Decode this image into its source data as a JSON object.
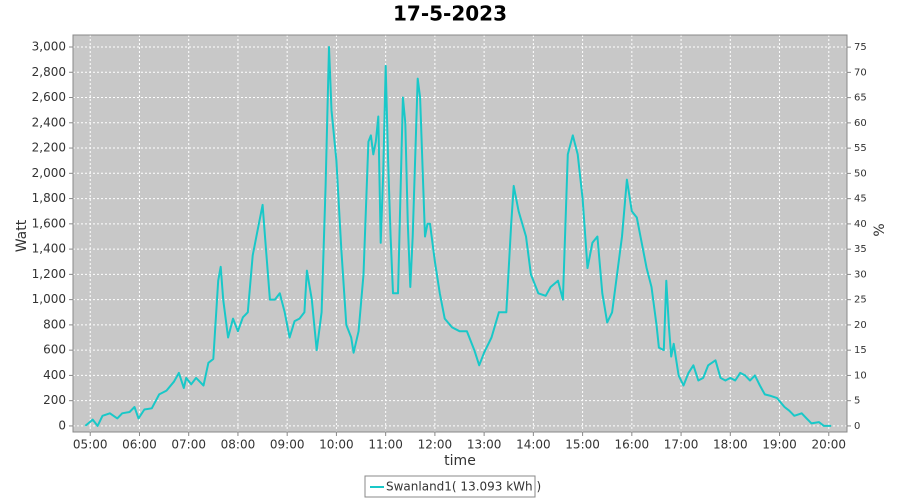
{
  "chart_data": {
    "type": "line",
    "title": "17-5-2023",
    "x_label": "time",
    "y_label": "Watt",
    "y2_label": "%",
    "x": [
      4.9,
      5.05,
      5.15,
      5.25,
      5.4,
      5.55,
      5.65,
      5.8,
      5.9,
      5.98,
      6.1,
      6.25,
      6.4,
      6.55,
      6.7,
      6.8,
      6.9,
      6.95,
      7.05,
      7.15,
      7.3,
      7.4,
      7.5,
      7.6,
      7.65,
      7.7,
      7.8,
      7.9,
      8.0,
      8.1,
      8.2,
      8.3,
      8.4,
      8.5,
      8.55,
      8.65,
      8.75,
      8.85,
      8.95,
      9.05,
      9.15,
      9.25,
      9.35,
      9.4,
      9.5,
      9.6,
      9.7,
      9.78,
      9.85,
      9.9,
      10.0,
      10.1,
      10.2,
      10.3,
      10.35,
      10.45,
      10.55,
      10.65,
      10.7,
      10.75,
      10.8,
      10.85,
      10.9,
      10.95,
      11.0,
      11.05,
      11.1,
      11.15,
      11.25,
      11.35,
      11.4,
      11.45,
      11.5,
      11.55,
      11.65,
      11.7,
      11.8,
      11.85,
      11.9,
      12.0,
      12.1,
      12.2,
      12.35,
      12.5,
      12.65,
      12.8,
      12.9,
      13.0,
      13.15,
      13.3,
      13.45,
      13.55,
      13.6,
      13.7,
      13.85,
      13.95,
      14.1,
      14.25,
      14.35,
      14.5,
      14.6,
      14.7,
      14.8,
      14.9,
      15.0,
      15.1,
      15.2,
      15.3,
      15.4,
      15.5,
      15.6,
      15.8,
      15.9,
      16.0,
      16.1,
      16.2,
      16.3,
      16.4,
      16.5,
      16.55,
      16.65,
      16.7,
      16.75,
      16.8,
      16.85,
      16.95,
      17.05,
      17.15,
      17.25,
      17.35,
      17.45,
      17.55,
      17.7,
      17.8,
      17.9,
      18.0,
      18.1,
      18.2,
      18.3,
      18.4,
      18.5,
      18.6,
      18.7,
      18.8,
      18.95,
      19.1,
      19.2,
      19.3,
      19.45,
      19.55,
      19.65,
      19.8,
      19.9,
      20.05
    ],
    "series": [
      {
        "name": "Swanland1( 13.093 kWh )",
        "color": "#19c8c8",
        "values": [
          0,
          50,
          0,
          80,
          100,
          60,
          100,
          110,
          150,
          60,
          130,
          140,
          250,
          280,
          350,
          420,
          300,
          380,
          330,
          380,
          320,
          500,
          530,
          1150,
          1260,
          1000,
          700,
          850,
          750,
          860,
          900,
          1350,
          1550,
          1750,
          1500,
          1000,
          1000,
          1050,
          900,
          700,
          830,
          850,
          900,
          1230,
          1000,
          600,
          900,
          1900,
          3000,
          2500,
          2100,
          1400,
          800,
          700,
          580,
          750,
          1200,
          2250,
          2300,
          2150,
          2250,
          2450,
          1450,
          2000,
          2850,
          2100,
          1500,
          1050,
          1050,
          2600,
          2400,
          1600,
          1100,
          1500,
          2750,
          2600,
          1500,
          1600,
          1600,
          1300,
          1050,
          850,
          780,
          750,
          750,
          600,
          480,
          580,
          700,
          900,
          900,
          1600,
          1900,
          1700,
          1500,
          1200,
          1050,
          1030,
          1100,
          1150,
          1000,
          2150,
          2300,
          2150,
          1800,
          1250,
          1450,
          1500,
          1050,
          820,
          900,
          1500,
          1950,
          1700,
          1650,
          1450,
          1250,
          1100,
          800,
          620,
          600,
          1150,
          800,
          550,
          650,
          400,
          320,
          420,
          480,
          360,
          380,
          480,
          520,
          380,
          360,
          380,
          360,
          420,
          400,
          360,
          400,
          320,
          250,
          240,
          220,
          150,
          120,
          80,
          100,
          60,
          20,
          30,
          0,
          0
        ]
      }
    ],
    "xlim": [
      4.65,
      20.37
    ],
    "xticks": [
      {
        "value": 5,
        "label": "05:00"
      },
      {
        "value": 6,
        "label": "06:00"
      },
      {
        "value": 7,
        "label": "07:00"
      },
      {
        "value": 8,
        "label": "08:00"
      },
      {
        "value": 9,
        "label": "09:00"
      },
      {
        "value": 10,
        "label": "10:00"
      },
      {
        "value": 11,
        "label": "11:00"
      },
      {
        "value": 12,
        "label": "12:00"
      },
      {
        "value": 13,
        "label": "13:00"
      },
      {
        "value": 14,
        "label": "14:00"
      },
      {
        "value": 15,
        "label": "15:00"
      },
      {
        "value": 16,
        "label": "16:00"
      },
      {
        "value": 17,
        "label": "17:00"
      },
      {
        "value": 18,
        "label": "18:00"
      },
      {
        "value": 19,
        "label": "19:00"
      },
      {
        "value": 20,
        "label": "20:00"
      }
    ],
    "ylim": [
      -48,
      3095
    ],
    "yticks": [
      0,
      200,
      400,
      600,
      800,
      {
        "value": 1000,
        "label": "1,000"
      },
      {
        "value": 1200,
        "label": "1,200"
      },
      {
        "value": 1400,
        "label": "1,400"
      },
      {
        "value": 1600,
        "label": "1,600"
      },
      {
        "value": 1800,
        "label": "1,800"
      },
      {
        "value": 2000,
        "label": "2,000"
      },
      {
        "value": 2200,
        "label": "2,200"
      },
      {
        "value": 2400,
        "label": "2,400"
      },
      {
        "value": 2600,
        "label": "2,600"
      },
      {
        "value": 2800,
        "label": "2,800"
      },
      {
        "value": 3000,
        "label": "3,000"
      }
    ],
    "y2lim": [
      -1.2,
      77.4
    ],
    "y2ticks": [
      0,
      5,
      10,
      15,
      20,
      25,
      30,
      35,
      40,
      45,
      50,
      55,
      60,
      65,
      70,
      75
    ],
    "grid": true
  }
}
